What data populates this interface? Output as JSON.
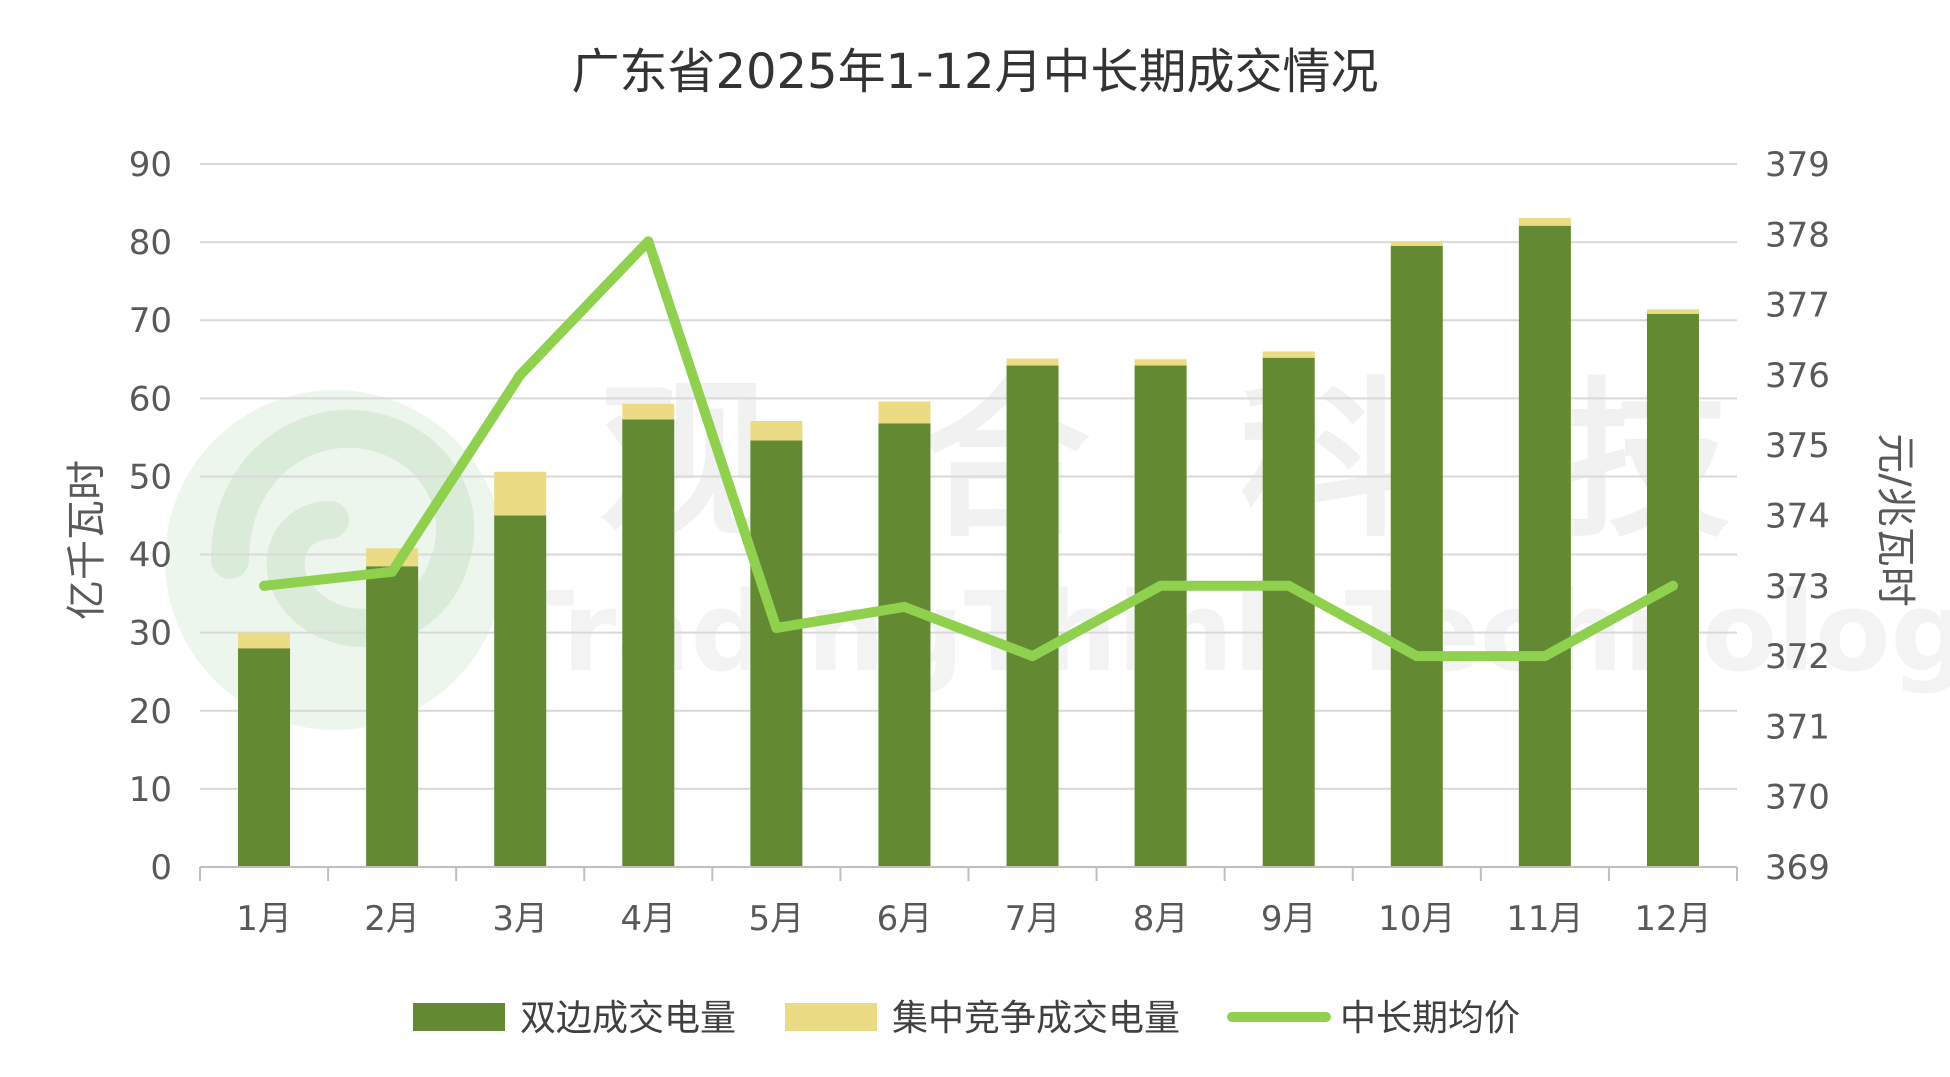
{
  "chart_data": {
    "type": "bar",
    "title": "广东省2025年1-12月中长期成交情况",
    "categories": [
      "1月",
      "2月",
      "3月",
      "4月",
      "5月",
      "6月",
      "7月",
      "8月",
      "9月",
      "10月",
      "11月",
      "12月"
    ],
    "ylabel": "亿千瓦时",
    "ylabel_right": "元/兆瓦时",
    "ylim": [
      0,
      90
    ],
    "y_ticks": [
      "0",
      "10",
      "20",
      "30",
      "40",
      "50",
      "60",
      "70",
      "80",
      "90"
    ],
    "ylim_right": [
      369,
      379
    ],
    "y_ticks_right": [
      "369",
      "370",
      "371",
      "372",
      "373",
      "374",
      "375",
      "376",
      "377",
      "378",
      "379"
    ],
    "grid": true,
    "legend_position": "bottom",
    "stacked": true,
    "series": [
      {
        "name": "双边成交电量",
        "type": "bar",
        "axis": "left",
        "color": "#638a33",
        "values": [
          28,
          38.5,
          45,
          57.3,
          54.6,
          56.8,
          64.2,
          64.2,
          65.2,
          79.5,
          82.1,
          70.8
        ]
      },
      {
        "name": "集中竞争成交电量",
        "type": "bar",
        "axis": "left",
        "color": "#eadb84",
        "values": [
          2,
          2.3,
          5.6,
          2,
          2.5,
          2.8,
          0.9,
          0.8,
          0.8,
          0.6,
          1,
          0.6
        ]
      },
      {
        "name": "中长期均价",
        "type": "line",
        "axis": "right",
        "color": "#8fd14f",
        "values": [
          373,
          373.2,
          376,
          377.9,
          372.4,
          372.7,
          372,
          373,
          373,
          372,
          372,
          373
        ]
      }
    ],
    "watermark": "观 合 科 技 TradingThink Technology"
  }
}
